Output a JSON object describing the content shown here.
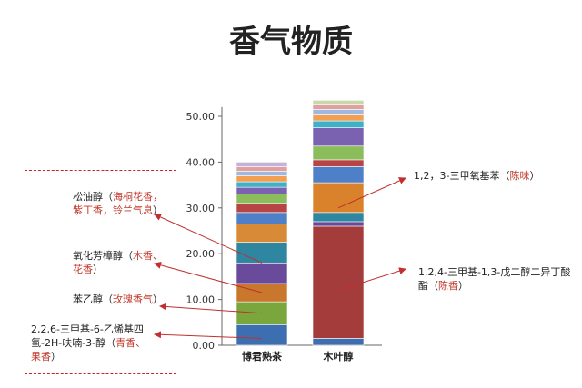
{
  "title": "香气物质",
  "chart_data": {
    "type": "bar",
    "stacked": true,
    "categories": [
      "博君熟茶",
      "木叶醇"
    ],
    "yticks": [
      "0.00",
      "10.00",
      "20.00",
      "30.00",
      "40.00",
      "50.00"
    ],
    "ylim": [
      0,
      52
    ],
    "segments": [
      {
        "category": "博君熟茶",
        "parts": [
          {
            "value": 4.5,
            "color": "#3d6fb0"
          },
          {
            "value": 5.0,
            "color": "#7aa63e"
          },
          {
            "value": 4.0,
            "color": "#c8772c"
          },
          {
            "value": 4.5,
            "color": "#6a4a9a"
          },
          {
            "value": 4.5,
            "color": "#2e86a0"
          },
          {
            "value": 4.0,
            "color": "#d98a37"
          },
          {
            "value": 2.5,
            "color": "#4e7fc9"
          },
          {
            "value": 2.0,
            "color": "#b84545"
          },
          {
            "value": 2.0,
            "color": "#8bbd5c"
          },
          {
            "value": 1.5,
            "color": "#7b62b0"
          },
          {
            "value": 1.2,
            "color": "#3fb0c9"
          },
          {
            "value": 1.3,
            "color": "#f0a050"
          },
          {
            "value": 1.0,
            "color": "#9fb8e0"
          },
          {
            "value": 1.0,
            "color": "#e0a0a0"
          },
          {
            "value": 1.0,
            "color": "#c0b3dd"
          }
        ]
      },
      {
        "category": "木叶醇",
        "parts": [
          {
            "value": 1.5,
            "color": "#3d6fb0"
          },
          {
            "value": 24.5,
            "color": "#a53c3c"
          },
          {
            "value": 1.0,
            "color": "#6a4a9a"
          },
          {
            "value": 2.0,
            "color": "#2e86a0"
          },
          {
            "value": 6.5,
            "color": "#d9822b"
          },
          {
            "value": 3.5,
            "color": "#4e7fc9"
          },
          {
            "value": 1.5,
            "color": "#b84545"
          },
          {
            "value": 3.0,
            "color": "#8bbd5c"
          },
          {
            "value": 4.0,
            "color": "#7b62b0"
          },
          {
            "value": 1.5,
            "color": "#3fb0c9"
          },
          {
            "value": 1.3,
            "color": "#f0a050"
          },
          {
            "value": 1.2,
            "color": "#9fb8e0"
          },
          {
            "value": 1.0,
            "color": "#e0a0a0"
          },
          {
            "value": 1.0,
            "color": "#c7d9a8"
          }
        ]
      }
    ]
  },
  "annotations": {
    "a1": {
      "name": "松油醇（",
      "aroma": "海桐花香，紫丁香，铃兰气息",
      "tail": "）",
      "cat": 0,
      "value": 18
    },
    "a2": {
      "name": "氧化芳樟醇（",
      "aroma": "木香、花香",
      "tail": "）",
      "cat": 0,
      "value": 11.5
    },
    "a3": {
      "name": "苯乙醇（",
      "aroma": "玫瑰香气",
      "tail": "）",
      "cat": 0,
      "value": 7
    },
    "a4": {
      "name": "2,2,6-三甲基-6-乙烯基四氢-2H-呋喃-3-醇（",
      "aroma": "青香、果香",
      "tail": "）",
      "cat": 0,
      "value": 1.5
    },
    "a5": {
      "name": "1,2，3-三甲氧基苯（",
      "aroma": "陈味",
      "tail": "）",
      "cat": 1,
      "value": 30
    },
    "a6": {
      "name": "1,2,4-三甲基-1,3-戊二醇二异丁酸酯（",
      "aroma": "陈香",
      "tail": "）",
      "cat": 1,
      "value": 12
    }
  }
}
